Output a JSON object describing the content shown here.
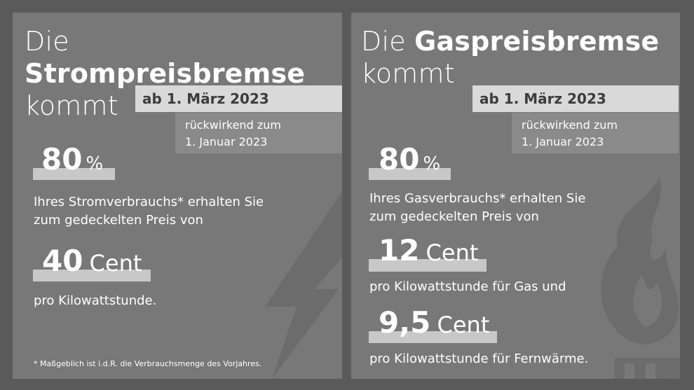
{
  "strom": {
    "title_pre": "Die ",
    "title_bold": "Strompreisbremse",
    "title_line2": "kommt",
    "date": "ab 1. März 2023",
    "retro_line1": "rückwirkend zum",
    "retro_line2": "1. Januar 2023",
    "pct_value": "80",
    "pct_unit": "%",
    "share_line1": "Ihres Stromverbrauchs* erhalten Sie",
    "share_line2": "zum gedeckelten Preis von",
    "price_value": "40",
    "price_unit": "Cent",
    "price_desc": "pro Kilowattstunde.",
    "footnote": "* Maßgeblich ist i.d.R. die Verbrauchsmenge des Vorjahres."
  },
  "gas": {
    "title_pre": "Die ",
    "title_bold": "Gaspreisbremse",
    "title_line2": "kommt",
    "date": "ab 1. März 2023",
    "retro_line1": "rückwirkend zum",
    "retro_line2": "1. Januar 2023",
    "pct_value": "80",
    "pct_unit": "%",
    "share_line1": "Ihres Gasverbrauchs* erhalten Sie",
    "share_line2": "zum gedeckelten Preis von",
    "price1_value": "12",
    "price1_unit": "Cent",
    "price1_desc": "pro Kilowattstunde für Gas und",
    "price2_value": "9,5",
    "price2_unit": "Cent",
    "price2_desc": "pro Kilowattstunde für Fernwärme."
  }
}
